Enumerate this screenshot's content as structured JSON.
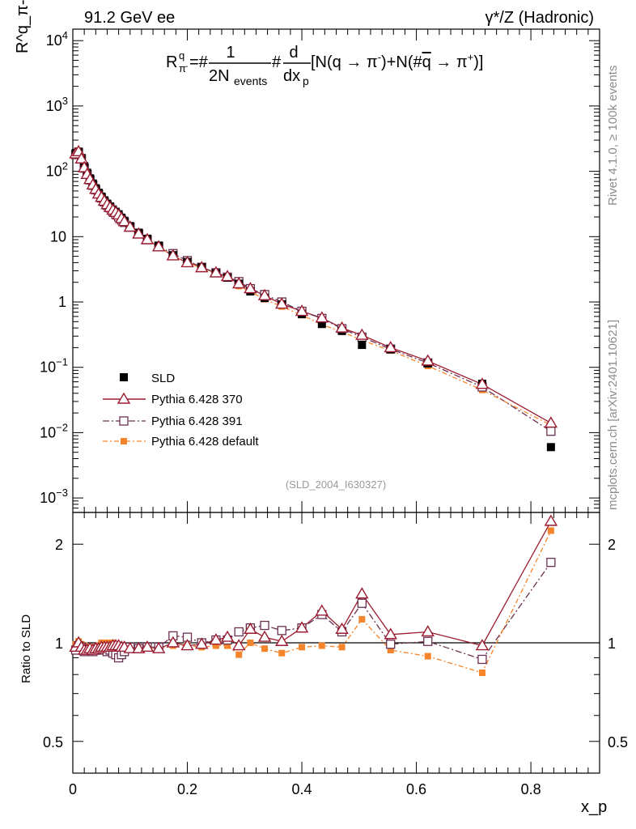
{
  "header": {
    "left": "91.2 GeV ee",
    "right": "γ*/Z (Hadronic)"
  },
  "side_labels": {
    "rivet": "Rivet 4.1.0, ≥ 100k events",
    "mcplots": "mcplots.cern.ch [arXiv:2401.10621]"
  },
  "analysis_id": "(SLD_2004_I630327)",
  "formula": {
    "lhs": "R",
    "lhs_sup": "q",
    "lhs_sub": "π",
    "lhs_subsup": "-",
    "eq_hash": "=#",
    "frac1_num": "1",
    "frac1_den": "2N",
    "frac1_den_sub": "events",
    "mid_hash": "#",
    "frac2_num": "d",
    "frac2_den": "dx",
    "frac2_den_sub": "p",
    "tail": "[N(q → π",
    "tail_sup1": "-",
    "tail2": ")+N(#",
    "tail_qbar": "q",
    "tail3": " → π",
    "tail_sup2": "+",
    "tail4": ")]"
  },
  "colors": {
    "data": "#000000",
    "p370": "#9b1b30",
    "p391": "#6b3050",
    "pdefault": "#f5842a"
  },
  "chart_data": [
    {
      "type": "scatter",
      "title": "",
      "ylabel": "R^q_π-",
      "xlabel": "",
      "yscale": "log",
      "ylim": [
        0.0006,
        15000
      ],
      "xlim": [
        0,
        0.92
      ],
      "y_tick_labels": [
        "10^-3",
        "10^-2",
        "10^-1",
        "1",
        "10",
        "10^2",
        "10^3",
        "10^4"
      ],
      "legend": [
        "SLD",
        "Pythia 6.428 370",
        "Pythia 6.428 391",
        "Pythia 6.428 default"
      ],
      "legend_position": "lower-left",
      "x": [
        0.005,
        0.01,
        0.015,
        0.02,
        0.025,
        0.03,
        0.035,
        0.04,
        0.045,
        0.05,
        0.055,
        0.06,
        0.065,
        0.07,
        0.075,
        0.08,
        0.085,
        0.09,
        0.1,
        0.115,
        0.13,
        0.15,
        0.175,
        0.2,
        0.225,
        0.25,
        0.27,
        0.29,
        0.31,
        0.335,
        0.365,
        0.4,
        0.435,
        0.47,
        0.505,
        0.555,
        0.62,
        0.715,
        0.835
      ],
      "series": [
        {
          "name": "SLD",
          "values": [
            190,
            200,
            160,
            120,
            95,
            78,
            65,
            55,
            47,
            41,
            36,
            32,
            29,
            26,
            24,
            22,
            19.5,
            17.5,
            14.5,
            11.5,
            9.3,
            7.3,
            5.2,
            4.1,
            3.4,
            2.75,
            2.35,
            1.9,
            1.45,
            1.15,
            0.92,
            0.65,
            0.46,
            0.36,
            0.22,
            0.19,
            0.115,
            0.056,
            0.006
          ]
        },
        {
          "name": "Pythia 6.428 370",
          "values": [
            185,
            200,
            155,
            114,
            90,
            75,
            62,
            53,
            45,
            40,
            35,
            31,
            28,
            25.5,
            23.5,
            21.5,
            19,
            17,
            14,
            11,
            9,
            7,
            5.1,
            4.0,
            3.35,
            2.8,
            2.45,
            1.9,
            1.6,
            1.25,
            0.93,
            0.72,
            0.57,
            0.4,
            0.31,
            0.2,
            0.125,
            0.055,
            0.014
          ]
        },
        {
          "name": "Pythia 6.428 391",
          "values": [
            180,
            195,
            155,
            112,
            90,
            74,
            61,
            52,
            45,
            39,
            34,
            30,
            27.5,
            24,
            22,
            20,
            18,
            16.5,
            14,
            11,
            9,
            7.1,
            5.5,
            4.3,
            3.4,
            2.8,
            2.4,
            2.05,
            1.6,
            1.3,
            1.0,
            0.72,
            0.56,
            0.39,
            0.29,
            0.19,
            0.117,
            0.05,
            0.0105
          ]
        },
        {
          "name": "Pythia 6.428 default",
          "values": [
            188,
            202,
            158,
            118,
            92,
            76,
            63,
            53.5,
            46,
            41,
            36,
            32,
            29,
            26,
            23.5,
            21.5,
            19,
            17,
            14,
            11,
            9,
            7,
            5.1,
            4.0,
            3.3,
            2.7,
            2.3,
            1.75,
            1.45,
            1.1,
            0.85,
            0.63,
            0.45,
            0.35,
            0.26,
            0.18,
            0.105,
            0.045,
            0.013
          ]
        }
      ]
    },
    {
      "type": "scatter",
      "title": "",
      "ylabel": "Ratio to SLD",
      "xlabel": "x_p",
      "ylim": [
        0.4,
        2.5
      ],
      "xlim": [
        0,
        0.92
      ],
      "y_tick_labels": [
        "0.5",
        "1",
        "2"
      ],
      "x_tick_labels": [
        "0",
        "0.2",
        "0.4",
        "0.6",
        "0.8"
      ],
      "x": [
        0.005,
        0.01,
        0.015,
        0.02,
        0.025,
        0.03,
        0.035,
        0.04,
        0.045,
        0.05,
        0.055,
        0.06,
        0.065,
        0.07,
        0.075,
        0.08,
        0.085,
        0.09,
        0.1,
        0.115,
        0.13,
        0.15,
        0.175,
        0.2,
        0.225,
        0.25,
        0.27,
        0.29,
        0.31,
        0.335,
        0.365,
        0.4,
        0.435,
        0.47,
        0.505,
        0.555,
        0.62,
        0.715,
        0.835
      ],
      "series": [
        {
          "name": "Pythia 6.428 370",
          "values": [
            0.97,
            1.0,
            0.97,
            0.95,
            0.95,
            0.96,
            0.95,
            0.96,
            0.96,
            0.97,
            0.97,
            0.97,
            0.97,
            0.98,
            0.98,
            0.98,
            0.97,
            0.97,
            0.96,
            0.96,
            0.97,
            0.96,
            1.0,
            0.98,
            0.99,
            1.02,
            1.04,
            0.98,
            1.1,
            1.04,
            1.01,
            1.11,
            1.25,
            1.1,
            1.41,
            1.06,
            1.08,
            0.98,
            2.35
          ]
        },
        {
          "name": "Pythia 6.428 391",
          "values": [
            0.95,
            0.98,
            0.97,
            0.94,
            0.95,
            0.95,
            0.94,
            0.95,
            0.96,
            0.96,
            0.95,
            0.94,
            0.95,
            0.93,
            0.92,
            0.9,
            0.92,
            0.94,
            0.97,
            0.96,
            0.97,
            0.97,
            1.05,
            1.04,
            1.0,
            1.02,
            1.02,
            1.08,
            1.11,
            1.13,
            1.09,
            1.11,
            1.22,
            1.08,
            1.32,
            0.99,
            1.01,
            0.89,
            1.76
          ]
        },
        {
          "name": "Pythia 6.428 default",
          "values": [
            0.99,
            1.01,
            0.99,
            0.98,
            0.97,
            0.97,
            0.97,
            0.97,
            0.98,
            1.0,
            1.0,
            1.0,
            1.0,
            1.0,
            0.98,
            0.98,
            0.97,
            0.97,
            0.97,
            0.96,
            0.97,
            0.96,
            0.98,
            0.98,
            0.97,
            0.98,
            0.98,
            0.92,
            1.0,
            0.96,
            0.93,
            0.97,
            0.98,
            0.97,
            1.18,
            0.95,
            0.91,
            0.81,
            2.2
          ]
        }
      ]
    }
  ]
}
